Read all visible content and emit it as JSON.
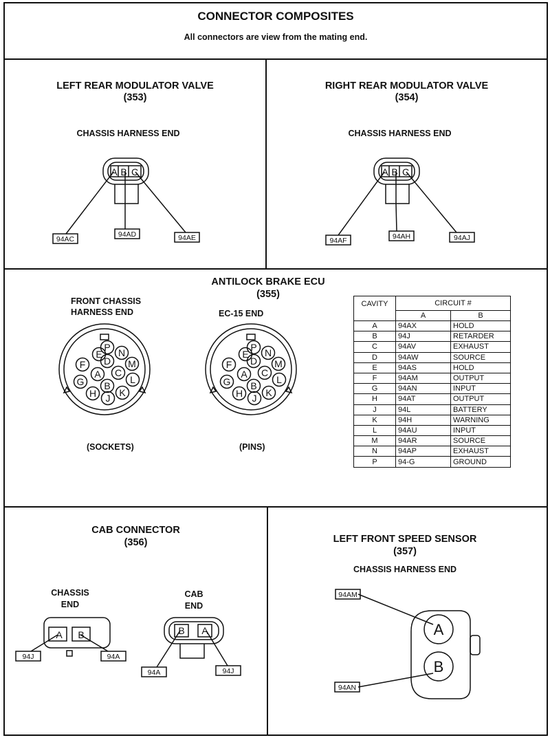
{
  "header": {
    "title": "CONNECTOR COMPOSITES",
    "subtitle": "All connectors are view from the mating end."
  },
  "c353": {
    "title": "LEFT REAR MODULATOR VALVE",
    "number": "(353)",
    "end_label": "CHASSIS HARNESS END",
    "cavities": [
      "A",
      "B",
      "C"
    ],
    "wires": [
      "94AC",
      "94AD",
      "94AE"
    ]
  },
  "c354": {
    "title": "RIGHT REAR MODULATOR VALVE",
    "number": "(354)",
    "end_label": "CHASSIS HARNESS END",
    "cavities": [
      "A",
      "B",
      "C"
    ],
    "wires": [
      "94AF",
      "94AH",
      "94AJ"
    ]
  },
  "c355": {
    "title": "ANTILOCK BRAKE ECU",
    "number": "(355)",
    "left_label_1": "FRONT CHASSIS",
    "left_label_2": "HARNESS END",
    "right_label": "EC-15 END",
    "left_caption": "(SOCKETS)",
    "right_caption": "(PINS)",
    "pins": [
      "P",
      "N",
      "E",
      "D",
      "M",
      "F",
      "C",
      "A",
      "L",
      "G",
      "B",
      "H",
      "J",
      "K"
    ],
    "table": {
      "col_cavity": "CAVITY",
      "col_circuit": "CIRCUIT #",
      "col_a": "A",
      "col_b": "B",
      "rows": [
        [
          "A",
          "94AX",
          "HOLD"
        ],
        [
          "B",
          "94J",
          "RETARDER"
        ],
        [
          "C",
          "94AV",
          "EXHAUST"
        ],
        [
          "D",
          "94AW",
          "SOURCE"
        ],
        [
          "E",
          "94AS",
          "HOLD"
        ],
        [
          "F",
          "94AM",
          "OUTPUT"
        ],
        [
          "G",
          "94AN",
          "INPUT"
        ],
        [
          "H",
          "94AT",
          "OUTPUT"
        ],
        [
          "J",
          "94L",
          "BATTERY"
        ],
        [
          "K",
          "94H",
          "WARNING"
        ],
        [
          "L",
          "94AU",
          "INPUT"
        ],
        [
          "M",
          "94AR",
          "SOURCE"
        ],
        [
          "N",
          "94AP",
          "EXHAUST"
        ],
        [
          "P",
          "94-G",
          "GROUND"
        ]
      ]
    }
  },
  "c356": {
    "title": "CAB CONNECTOR",
    "number": "(356)",
    "chassis_label_1": "CHASSIS",
    "chassis_label_2": "END",
    "cab_label_1": "CAB",
    "cab_label_2": "END",
    "chassis_cavities": [
      "A",
      "B"
    ],
    "chassis_wires": [
      "94J",
      "94A"
    ],
    "cab_cavities": [
      "B",
      "A"
    ],
    "cab_wires": [
      "94A",
      "94J"
    ]
  },
  "c357": {
    "title": "LEFT FRONT SPEED SENSOR",
    "number": "(357)",
    "end_label": "CHASSIS HARNESS END",
    "cavities": [
      "A",
      "B"
    ],
    "wires": [
      "94AM",
      "94AN"
    ]
  }
}
